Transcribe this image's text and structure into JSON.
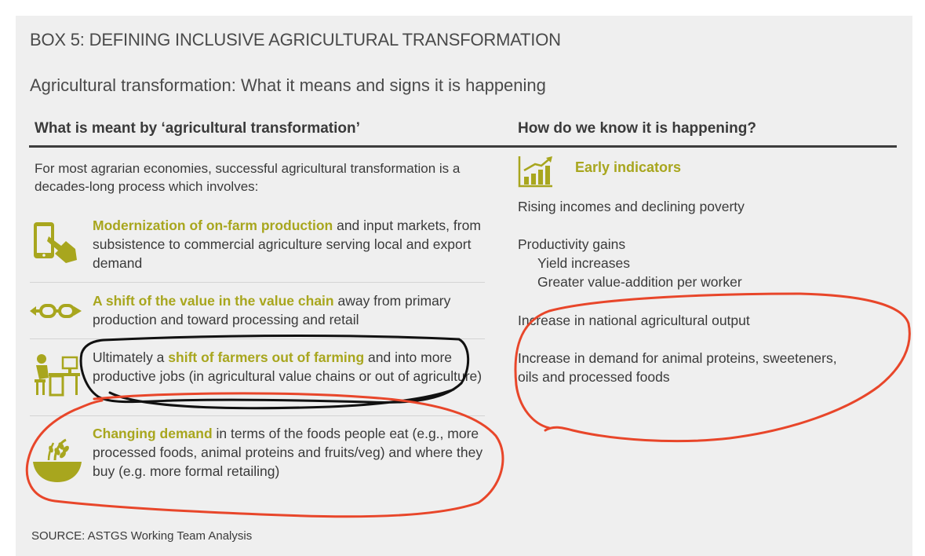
{
  "box_title": "BOX 5: DEFINING INCLUSIVE AGRICULTURAL TRANSFORMATION",
  "subtitle": "Agricultural transformation: What it means and signs it is happening",
  "left_column": {
    "heading": "What is meant by ‘agricultural transformation’",
    "intro": "For most agrarian economies, successful agricultural transformation is a decades-long process which involves:",
    "items": [
      {
        "icon": "tablet-hand-icon",
        "highlight": "Modernization of on-farm production",
        "before": "",
        "after": " and input markets, from subsistence to commercial agriculture serving local and export demand"
      },
      {
        "icon": "chain-link-icon",
        "highlight": "A shift of the value in the value chain",
        "before": "",
        "after": " away from primary production and toward processing and retail"
      },
      {
        "icon": "office-worker-icon",
        "highlight": "shift of farmers out of farming",
        "before": "Ultimately a ",
        "after": " and into more productive jobs (in agricultural value chains or out of agriculture)"
      },
      {
        "icon": "grain-bowl-icon",
        "highlight": "Changing demand",
        "before": "",
        "after": " in terms of the foods people eat (e.g., more processed foods, animal proteins and fruits/veg) and where they buy (e.g. more formal retailing)"
      }
    ]
  },
  "right_column": {
    "heading": "How do we know it is happening?",
    "early_indicators_label": "Early indicators",
    "early_indicators_icon": "rising-bar-chart-icon",
    "indicators": [
      "Rising incomes and declining poverty",
      "Productivity gains",
      "Yield increases",
      "Greater value-addition per worker",
      "Increase in national agricultural output",
      "Increase in demand for animal proteins, sweeteners,",
      "oils and processed foods"
    ]
  },
  "source": "SOURCE: ASTGS Working Team Analysis",
  "colors": {
    "accent_olive": "#a8a61e",
    "annotation_red": "#e8462a",
    "annotation_black": "#111111",
    "panel_bg": "#efefef",
    "text": "#3a3a3a"
  }
}
